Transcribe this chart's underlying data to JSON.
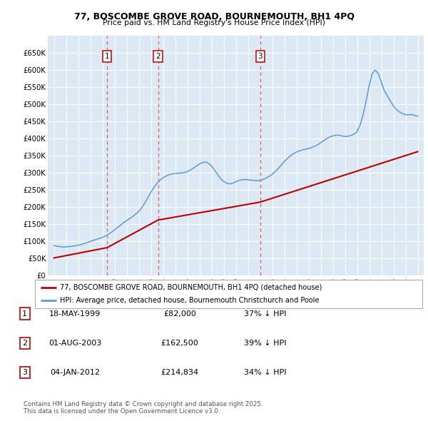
{
  "title": "77, BOSCOMBE GROVE ROAD, BOURNEMOUTH, BH1 4PQ",
  "subtitle": "Price paid vs. HM Land Registry's House Price Index (HPI)",
  "fig_bg_color": "#ffffff",
  "plot_bg_color": "#dce9f5",
  "ylim": [
    0,
    700000
  ],
  "yticks": [
    0,
    50000,
    100000,
    150000,
    200000,
    250000,
    300000,
    350000,
    400000,
    450000,
    500000,
    550000,
    600000,
    650000
  ],
  "ytick_labels": [
    "£0",
    "£50K",
    "£100K",
    "£150K",
    "£200K",
    "£250K",
    "£300K",
    "£350K",
    "£400K",
    "£450K",
    "£500K",
    "£550K",
    "£600K",
    "£650K"
  ],
  "xlim_start": 1994.5,
  "xlim_end": 2025.5,
  "xticks": [
    1995,
    1996,
    1997,
    1998,
    1999,
    2000,
    2001,
    2002,
    2003,
    2004,
    2005,
    2006,
    2007,
    2008,
    2009,
    2010,
    2011,
    2012,
    2013,
    2014,
    2015,
    2016,
    2017,
    2018,
    2019,
    2020,
    2021,
    2022,
    2023,
    2024,
    2025
  ],
  "hpi_color": "#5b9bd5",
  "price_color": "#c00000",
  "vline_color": "#e06060",
  "transactions": [
    {
      "num": 1,
      "date": "18-MAY-1999",
      "price": 82000,
      "hpi_diff": "37% ↓ HPI",
      "x_year": 1999.38
    },
    {
      "num": 2,
      "date": "01-AUG-2003",
      "price": 162500,
      "hpi_diff": "39% ↓ HPI",
      "x_year": 2003.58
    },
    {
      "num": 3,
      "date": "04-JAN-2012",
      "price": 214834,
      "hpi_diff": "34% ↓ HPI",
      "x_year": 2012.01
    }
  ],
  "legend_line1": "77, BOSCOMBE GROVE ROAD, BOURNEMOUTH, BH1 4PQ (detached house)",
  "legend_line2": "HPI: Average price, detached house, Bournemouth Christchurch and Poole",
  "footer_line1": "Contains HM Land Registry data © Crown copyright and database right 2025.",
  "footer_line2": "This data is licensed under the Open Government Licence v3.0.",
  "hpi_data_years": [
    1995.0,
    1995.25,
    1995.5,
    1995.75,
    1996.0,
    1996.25,
    1996.5,
    1996.75,
    1997.0,
    1997.25,
    1997.5,
    1997.75,
    1998.0,
    1998.25,
    1998.5,
    1998.75,
    1999.0,
    1999.25,
    1999.5,
    1999.75,
    2000.0,
    2000.25,
    2000.5,
    2000.75,
    2001.0,
    2001.25,
    2001.5,
    2001.75,
    2002.0,
    2002.25,
    2002.5,
    2002.75,
    2003.0,
    2003.25,
    2003.5,
    2003.75,
    2004.0,
    2004.25,
    2004.5,
    2004.75,
    2005.0,
    2005.25,
    2005.5,
    2005.75,
    2006.0,
    2006.25,
    2006.5,
    2006.75,
    2007.0,
    2007.25,
    2007.5,
    2007.75,
    2008.0,
    2008.25,
    2008.5,
    2008.75,
    2009.0,
    2009.25,
    2009.5,
    2009.75,
    2010.0,
    2010.25,
    2010.5,
    2010.75,
    2011.0,
    2011.25,
    2011.5,
    2011.75,
    2012.0,
    2012.25,
    2012.5,
    2012.75,
    2013.0,
    2013.25,
    2013.5,
    2013.75,
    2014.0,
    2014.25,
    2014.5,
    2014.75,
    2015.0,
    2015.25,
    2015.5,
    2015.75,
    2016.0,
    2016.25,
    2016.5,
    2016.75,
    2017.0,
    2017.25,
    2017.5,
    2017.75,
    2018.0,
    2018.25,
    2018.5,
    2018.75,
    2019.0,
    2019.25,
    2019.5,
    2019.75,
    2020.0,
    2020.25,
    2020.5,
    2020.75,
    2021.0,
    2021.25,
    2021.5,
    2021.75,
    2022.0,
    2022.25,
    2022.5,
    2022.75,
    2023.0,
    2023.25,
    2023.5,
    2023.75,
    2024.0,
    2024.25,
    2024.5,
    2024.75,
    2025.0
  ],
  "hpi_data_values": [
    88000,
    86000,
    85000,
    84000,
    84500,
    85000,
    86000,
    87500,
    89000,
    91000,
    94000,
    97000,
    100000,
    103000,
    106000,
    109000,
    112000,
    116000,
    121000,
    127000,
    134000,
    141000,
    148000,
    155000,
    161000,
    167000,
    173000,
    180000,
    188000,
    199000,
    213000,
    228000,
    244000,
    258000,
    270000,
    279000,
    286000,
    291000,
    295000,
    297000,
    298000,
    299000,
    300000,
    301000,
    304000,
    308000,
    314000,
    320000,
    326000,
    330000,
    332000,
    328000,
    320000,
    308000,
    295000,
    283000,
    275000,
    270000,
    268000,
    270000,
    274000,
    278000,
    280000,
    281000,
    280000,
    279000,
    278000,
    277000,
    278000,
    281000,
    285000,
    290000,
    296000,
    304000,
    313000,
    323000,
    333000,
    342000,
    350000,
    356000,
    361000,
    364000,
    367000,
    369000,
    371000,
    374000,
    378000,
    382000,
    388000,
    394000,
    400000,
    405000,
    408000,
    410000,
    410000,
    408000,
    406000,
    407000,
    409000,
    413000,
    420000,
    440000,
    470000,
    510000,
    555000,
    590000,
    600000,
    590000,
    565000,
    540000,
    525000,
    510000,
    495000,
    485000,
    478000,
    473000,
    470000,
    470000,
    470000,
    468000,
    465000
  ],
  "price_data_years": [
    1995.0,
    1999.38,
    2003.58,
    2012.01,
    2025.0
  ],
  "price_data_values": [
    52000,
    82000,
    162500,
    214834,
    362000
  ]
}
